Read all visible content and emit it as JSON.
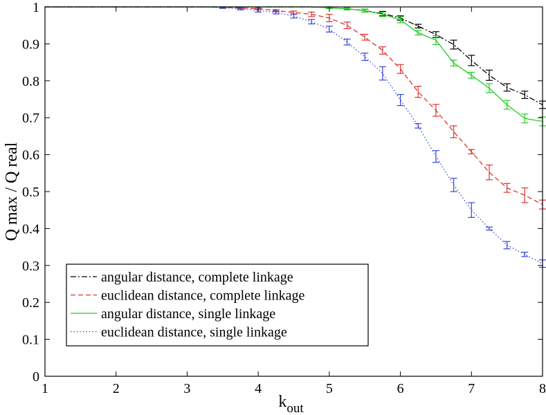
{
  "chart_data": {
    "type": "line",
    "xlabel": "k",
    "xlabel_sub": "out",
    "ylabel": "Q max / Q real",
    "xlim": [
      1,
      8
    ],
    "ylim": [
      0,
      1
    ],
    "x_ticks": [
      1,
      2,
      3,
      4,
      5,
      6,
      7,
      8
    ],
    "y_ticks": [
      0,
      0.1,
      0.2,
      0.3,
      0.4,
      0.5,
      0.6,
      0.7,
      0.8,
      0.9,
      1
    ],
    "grid": false,
    "legend_position": "bottom-left",
    "x": [
      1,
      1.25,
      1.5,
      1.75,
      2,
      2.25,
      2.5,
      2.75,
      3,
      3.25,
      3.5,
      3.75,
      4,
      4.25,
      4.5,
      4.75,
      5,
      5.25,
      5.5,
      5.75,
      6,
      6.25,
      6.5,
      6.75,
      7,
      7.25,
      7.5,
      7.75,
      8
    ],
    "series": [
      {
        "name": "angular distance, complete linkage",
        "color": "#000000",
        "dash": "dashdot",
        "values": [
          1,
          1,
          1,
          1,
          1,
          1,
          1,
          1,
          1,
          1,
          1,
          1,
          1,
          1,
          1,
          1,
          0.998,
          0.995,
          0.99,
          0.982,
          0.97,
          0.948,
          0.925,
          0.898,
          0.855,
          0.815,
          0.782,
          0.762,
          0.735
        ],
        "errors": [
          0,
          0,
          0,
          0,
          0,
          0,
          0,
          0,
          0,
          0,
          0,
          0,
          0,
          0,
          0,
          0,
          0.002,
          0.003,
          0.004,
          0.006,
          0.006,
          0.005,
          0.008,
          0.012,
          0.014,
          0.014,
          0.01,
          0.01,
          0.01
        ]
      },
      {
        "name": "euclidean distance, complete linkage",
        "color": "#e03030",
        "dash": "dashed",
        "values": [
          1,
          1,
          1,
          1,
          1,
          1,
          1,
          1,
          1,
          1,
          0.999,
          0.997,
          0.995,
          0.99,
          0.985,
          0.98,
          0.97,
          0.95,
          0.918,
          0.882,
          0.832,
          0.77,
          0.72,
          0.662,
          0.608,
          0.552,
          0.51,
          0.49,
          0.465
        ],
        "errors": [
          0,
          0,
          0,
          0,
          0,
          0,
          0,
          0,
          0,
          0,
          0.002,
          0.002,
          0.002,
          0.003,
          0.004,
          0.006,
          0.01,
          0.009,
          0.008,
          0.01,
          0.012,
          0.015,
          0.016,
          0.016,
          0.006,
          0.02,
          0.012,
          0.02,
          0.012
        ]
      },
      {
        "name": "angular distance, single linkage",
        "color": "#22cc22",
        "dash": "solid",
        "values": [
          1,
          1,
          1,
          1,
          1,
          1,
          1,
          1,
          1,
          1,
          1,
          1,
          1,
          1,
          1,
          1,
          0.998,
          0.995,
          0.99,
          0.98,
          0.965,
          0.93,
          0.91,
          0.848,
          0.815,
          0.78,
          0.735,
          0.698,
          0.69
        ],
        "errors": [
          0,
          0,
          0,
          0,
          0,
          0,
          0,
          0,
          0,
          0,
          0,
          0,
          0,
          0,
          0,
          0,
          0.002,
          0.003,
          0.004,
          0.006,
          0.008,
          0.006,
          0.012,
          0.008,
          0.008,
          0.012,
          0.012,
          0.012,
          0.012
        ]
      },
      {
        "name": "euclidean distance, single linkage",
        "color": "#3344dd",
        "dash": "dotted",
        "values": [
          1,
          1,
          1,
          1,
          1,
          1,
          1,
          1,
          1,
          1,
          0.998,
          0.995,
          0.99,
          0.985,
          0.975,
          0.96,
          0.94,
          0.905,
          0.865,
          0.82,
          0.748,
          0.678,
          0.595,
          0.518,
          0.45,
          0.4,
          0.355,
          0.33,
          0.305
        ],
        "errors": [
          0,
          0,
          0,
          0,
          0,
          0,
          0,
          0,
          0,
          0,
          0.002,
          0.003,
          0.004,
          0.004,
          0.005,
          0.006,
          0.008,
          0.008,
          0.01,
          0.018,
          0.015,
          0.006,
          0.016,
          0.018,
          0.02,
          0.004,
          0.01,
          0.006,
          0.01
        ]
      }
    ]
  }
}
